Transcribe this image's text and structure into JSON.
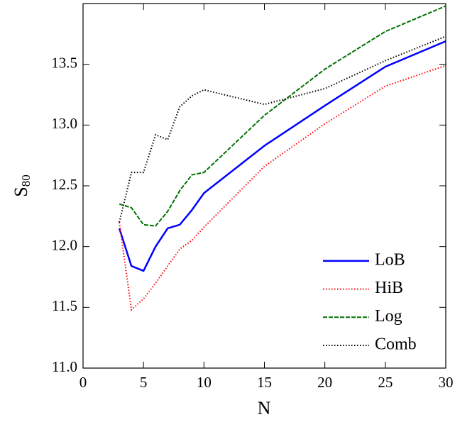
{
  "chart_data": {
    "type": "line",
    "x_label": "N",
    "y_label": "S",
    "y_label_subscript": "80",
    "x": [
      3,
      4,
      5,
      6,
      7,
      8,
      9,
      10,
      15,
      20,
      25,
      30
    ],
    "series": [
      {
        "name": "LoB",
        "color": "#0000ff",
        "dash": "solid",
        "values": [
          12.15,
          11.84,
          11.8,
          12.0,
          12.15,
          12.18,
          12.3,
          12.44,
          12.83,
          13.16,
          13.48,
          13.69
        ]
      },
      {
        "name": "HiB",
        "color": "#ff0000",
        "dash": "dotted",
        "values": [
          12.2,
          11.48,
          11.57,
          11.7,
          11.84,
          11.98,
          12.05,
          12.16,
          12.66,
          13.01,
          13.32,
          13.49
        ]
      },
      {
        "name": "Log",
        "color": "#007000",
        "dash": "dashed",
        "values": [
          12.35,
          12.32,
          12.18,
          12.17,
          12.29,
          12.46,
          12.59,
          12.61,
          13.08,
          13.46,
          13.77,
          13.98
        ]
      },
      {
        "name": "Comb",
        "color": "#000000",
        "dash": "dotted",
        "values": [
          12.2,
          12.61,
          12.61,
          12.92,
          12.88,
          13.15,
          13.24,
          13.29,
          13.17,
          13.3,
          13.53,
          13.73
        ]
      }
    ],
    "xlim": [
      0,
      30
    ],
    "xticks": [
      0,
      5,
      10,
      15,
      20,
      25,
      30
    ],
    "ylim": [
      11,
      14
    ],
    "yticks": [
      {
        "value": 11,
        "label": "11.0"
      },
      11.5,
      {
        "value": 12,
        "label": "12.0"
      },
      12.5,
      {
        "value": 13,
        "label": "13.0"
      },
      13.5
    ],
    "legend": "lower-right",
    "grid": false
  }
}
